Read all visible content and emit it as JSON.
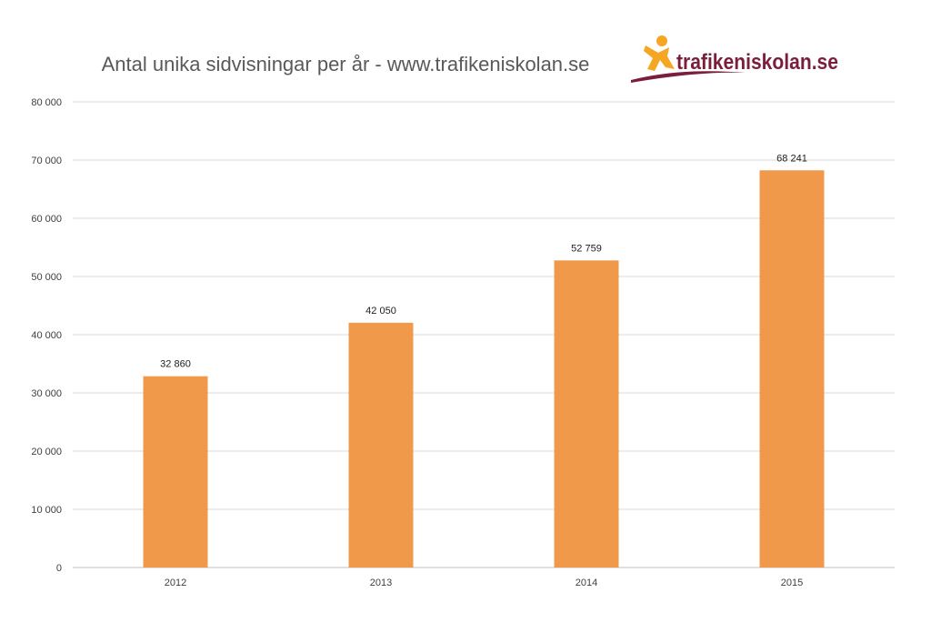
{
  "chart_data": {
    "type": "bar",
    "title": "Antal unika sidvisningar per år - www.trafikeniskolan.se",
    "categories": [
      "2012",
      "2013",
      "2014",
      "2015"
    ],
    "values": [
      32860,
      42050,
      52759,
      68241
    ],
    "value_labels": [
      "32 860",
      "42 050",
      "52 759",
      "68 241"
    ],
    "ylim": [
      0,
      80000
    ],
    "y_ticks": [
      0,
      10000,
      20000,
      30000,
      40000,
      50000,
      60000,
      70000,
      80000
    ],
    "y_tick_labels": [
      "0",
      "10 000",
      "20 000",
      "30 000",
      "40 000",
      "50 000",
      "60 000",
      "70 000",
      "80 000"
    ],
    "xlabel": "",
    "ylabel": "",
    "grid": true,
    "legend": "none",
    "bar_color": "#f0994a"
  },
  "logo": {
    "text": "trafikeniskolan.se",
    "text_color": "#7b1e3c",
    "figure_color": "#f5a623",
    "swoosh_color": "#7b1e3c"
  }
}
